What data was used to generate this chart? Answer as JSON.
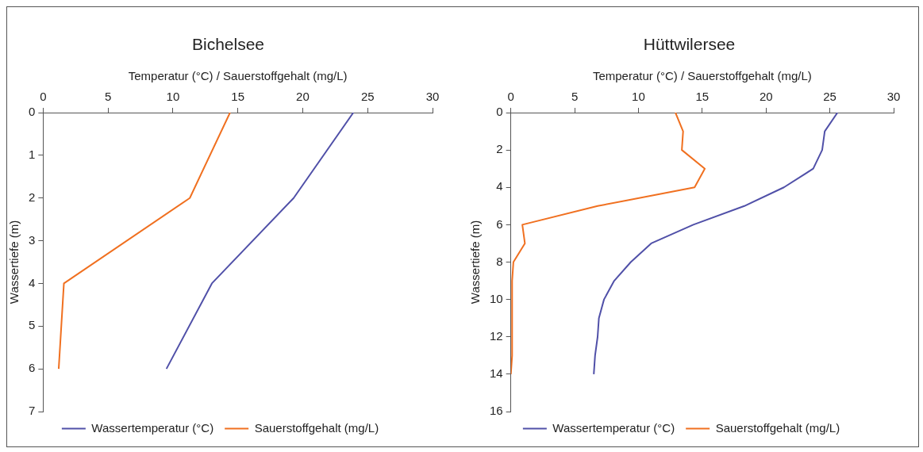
{
  "chart_data": [
    {
      "type": "line",
      "title": "Bichelsee",
      "xlabel": "Temperatur (°C) / Sauerstoffgehalt (mg/L)",
      "ylabel": "Wassertiefe (m)",
      "orientation": "horizontal",
      "x": [
        0,
        2,
        4,
        6
      ],
      "series": [
        {
          "name": "Wassertemperatur (°C)",
          "color": "#5050a8",
          "values": [
            23.9,
            19.3,
            13.0,
            9.5
          ]
        },
        {
          "name": "Sauerstoffgehalt (mg/L)",
          "color": "#f07020",
          "values": [
            14.4,
            11.3,
            1.6,
            1.2
          ]
        }
      ],
      "xlim": [
        0,
        30
      ],
      "xticks": [
        0,
        5,
        10,
        15,
        20,
        25,
        30
      ],
      "ylim": [
        7,
        0
      ],
      "yticks": [
        0,
        1,
        2,
        3,
        4,
        5,
        6,
        7
      ],
      "grid": false,
      "legend": "bottom"
    },
    {
      "type": "line",
      "title": "Hüttwilersee",
      "xlabel": "Temperatur (°C) / Sauerstoffgehalt (mg/L)",
      "ylabel": "Wassertiefe (m)",
      "orientation": "horizontal",
      "x": [
        0,
        1,
        2,
        3,
        4,
        5,
        6,
        7,
        8,
        9,
        10,
        11,
        12,
        13,
        14
      ],
      "series": [
        {
          "name": "Wassertemperatur (°C)",
          "color": "#5050a8",
          "values": [
            25.6,
            24.6,
            24.4,
            23.7,
            21.4,
            18.3,
            14.3,
            11.0,
            9.4,
            8.1,
            7.3,
            6.9,
            6.8,
            6.6,
            6.5
          ]
        },
        {
          "name": "Sauerstoffgehalt (mg/L)",
          "color": "#f07020",
          "values": [
            12.9,
            13.5,
            13.4,
            15.2,
            14.4,
            6.8,
            0.9,
            1.1,
            0.2,
            0.1,
            0.1,
            0.1,
            0.1,
            0.1,
            0
          ]
        }
      ],
      "xlim": [
        0,
        30
      ],
      "xticks": [
        0,
        5,
        10,
        15,
        20,
        25,
        30
      ],
      "ylim": [
        16,
        0
      ],
      "yticks": [
        0,
        2,
        4,
        6,
        8,
        10,
        12,
        14,
        16
      ],
      "grid": false,
      "legend": "bottom"
    }
  ]
}
